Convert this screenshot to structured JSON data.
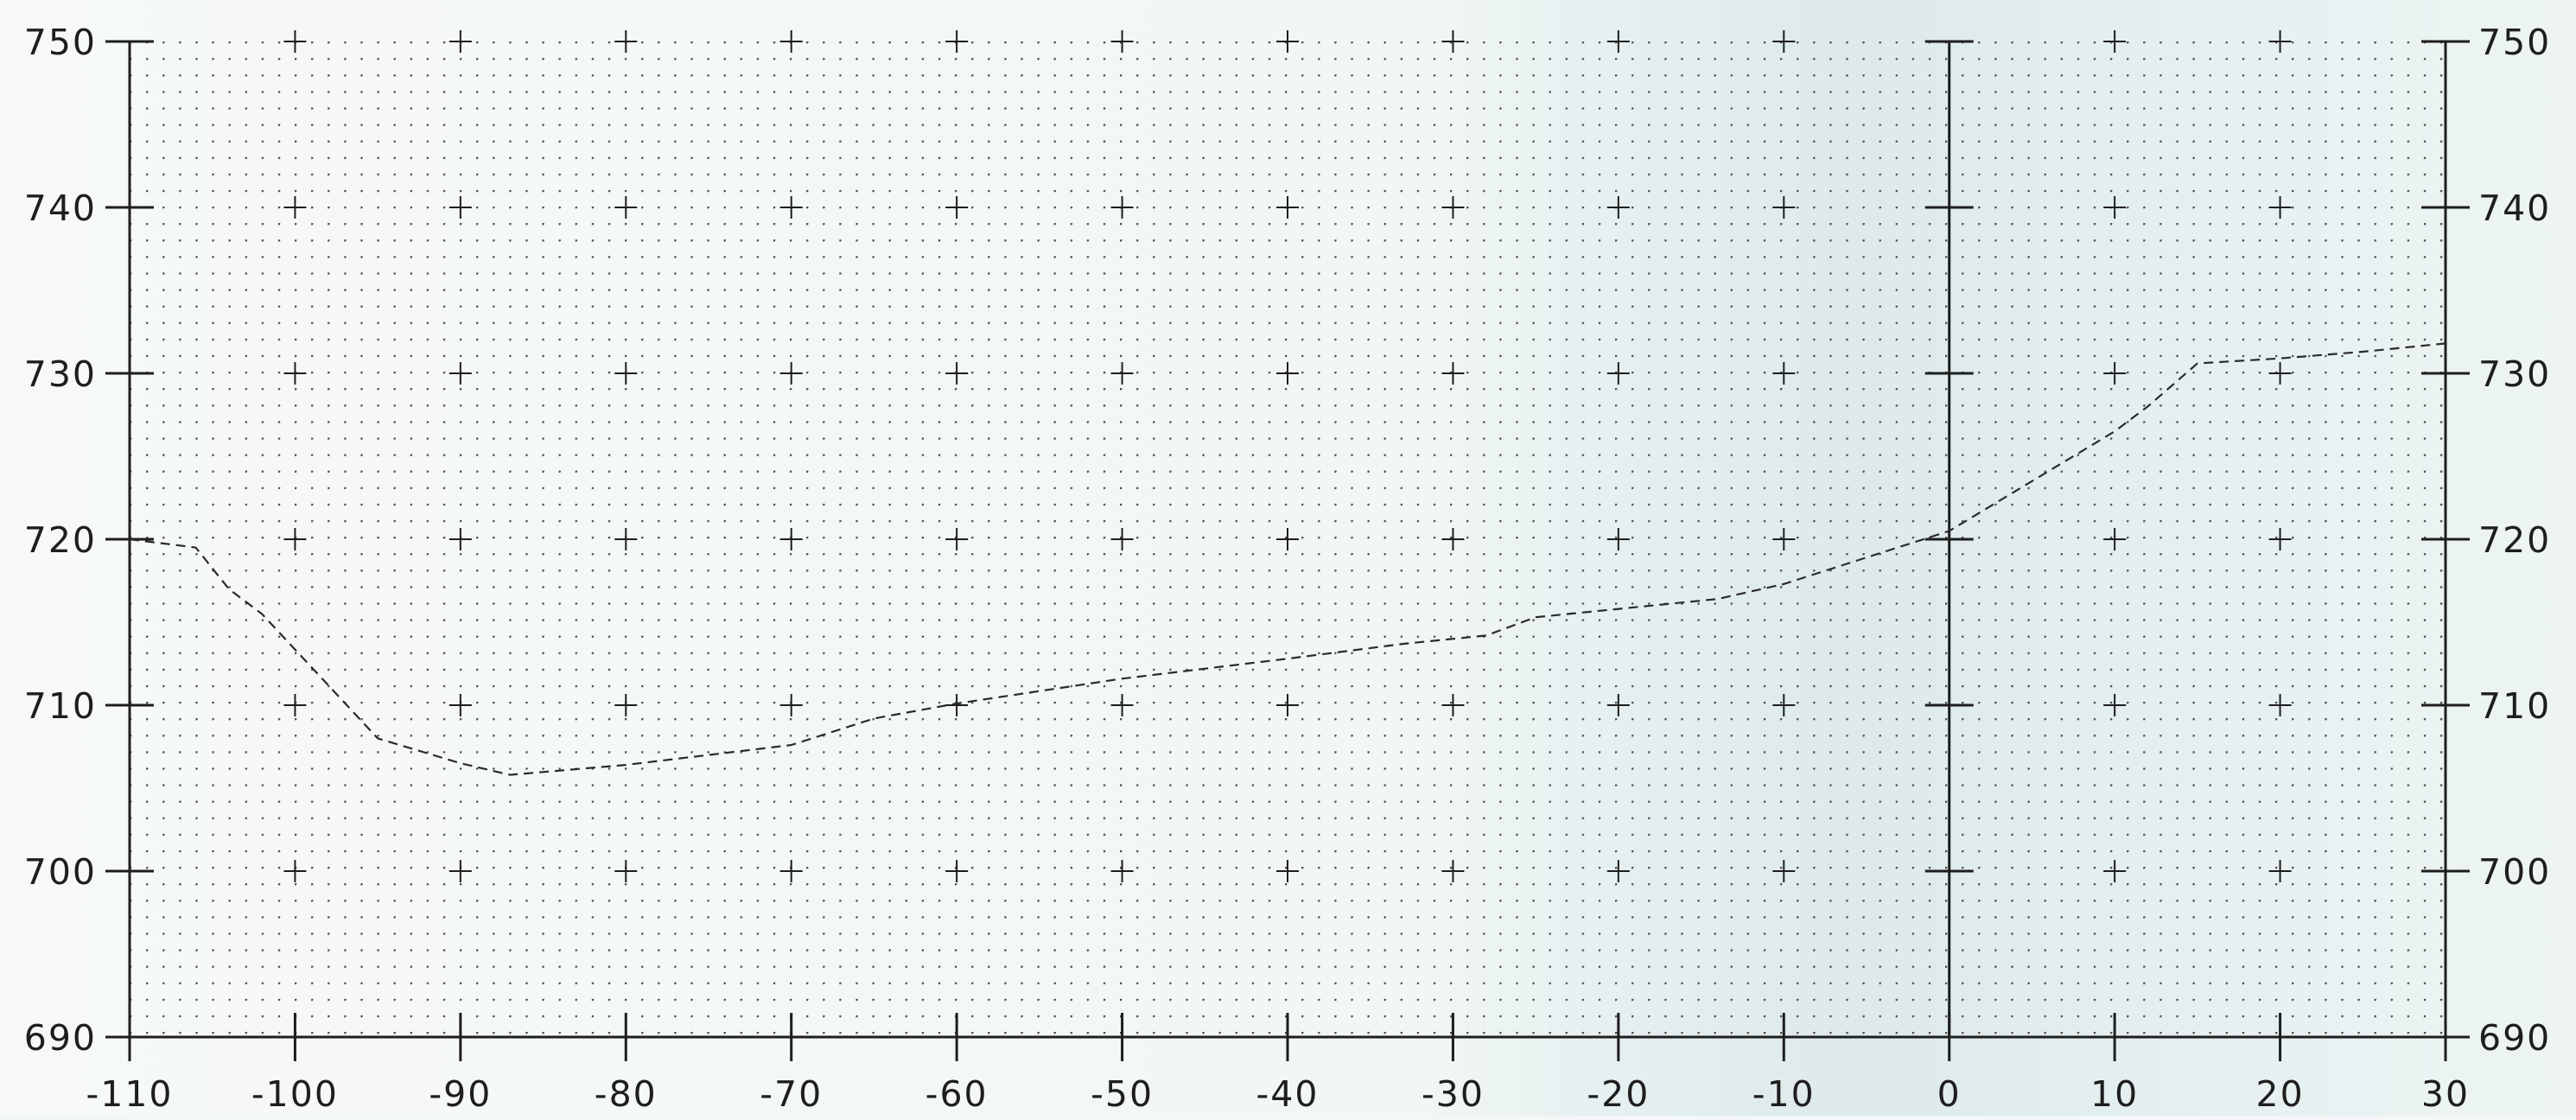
{
  "chart_data": {
    "type": "line",
    "title": "",
    "xlabel": "",
    "ylabel": "",
    "xlim": [
      -110,
      30
    ],
    "ylim": [
      690,
      750
    ],
    "x_ticks": [
      -110,
      -100,
      -90,
      -80,
      -70,
      -60,
      -50,
      -40,
      -30,
      -20,
      -10,
      0,
      10,
      20,
      30
    ],
    "x_tick_labels": [
      "-110",
      "-100",
      "-90",
      "-80",
      "-70",
      "-60",
      "-50",
      "-40",
      "-30",
      "-20",
      "-10",
      "0",
      "10",
      "20",
      "30"
    ],
    "y_ticks": [
      690,
      700,
      710,
      720,
      730,
      740,
      750
    ],
    "y_tick_labels": [
      "690",
      "700",
      "710",
      "720",
      "730",
      "740",
      "750"
    ],
    "grid": "dotted minor grid with cross markers at major intersections",
    "reference_vline_x": 0,
    "line_style": "dashed",
    "series": [
      {
        "x": [
          -110,
          -106,
          -104,
          -102,
          -95,
          -90,
          -87,
          -80,
          -75,
          -70,
          -65,
          -60,
          -50,
          -40,
          -33,
          -28,
          -25,
          -20,
          -14,
          -10,
          0,
          5,
          10,
          12,
          15,
          20,
          25,
          30
        ],
        "y": [
          720,
          719.5,
          717,
          715.5,
          708,
          706.5,
          705.8,
          706.4,
          707,
          707.6,
          709.2,
          710.1,
          711.6,
          712.8,
          713.7,
          714.2,
          715.3,
          715.8,
          716.4,
          717.3,
          720.5,
          723.5,
          726.5,
          728,
          730.6,
          730.9,
          731.3,
          731.8
        ]
      }
    ]
  }
}
